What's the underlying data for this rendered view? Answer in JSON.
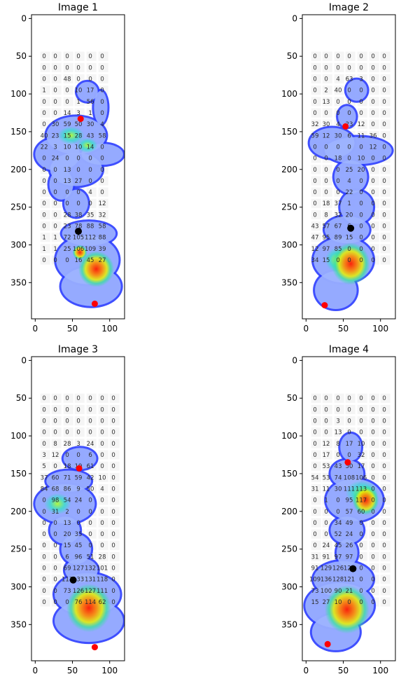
{
  "figure": {
    "grid": false,
    "x_ticks": [
      0,
      50,
      100
    ],
    "y_ticks": [
      0,
      50,
      100,
      150,
      200,
      250,
      300,
      350
    ],
    "xlim": [
      -5,
      120
    ],
    "ylim": [
      398,
      -5
    ],
    "colors": {
      "red_marker": "#ff0000",
      "black_marker": "#000000",
      "foot_outline": "#1a34ff"
    }
  },
  "chart_data": [
    {
      "type": "heatmap",
      "title": "Image 1",
      "x_ticks": [
        0,
        50,
        100
      ],
      "y_ticks": [
        0,
        50,
        100,
        150,
        200,
        250,
        300,
        350
      ],
      "xlim": [
        -5,
        120
      ],
      "ylim": [
        398,
        -5
      ],
      "grid_x": [
        12,
        27,
        43,
        58,
        74,
        90,
        105
      ],
      "grid_y": [
        50,
        65,
        80,
        95,
        110,
        125,
        140,
        155,
        170,
        185,
        200,
        215,
        230,
        245,
        260,
        275,
        290,
        305,
        320,
        335,
        350,
        365
      ],
      "cell_values": [
        [
          "0",
          "0",
          "0",
          "0",
          "0",
          "0"
        ],
        [
          "0",
          "0",
          "0",
          "0",
          "0",
          "0"
        ],
        [
          "0",
          "0",
          "48",
          "0",
          "0",
          "0"
        ],
        [
          "1",
          "0",
          "0",
          "10",
          "17",
          "0"
        ],
        [
          "0",
          "0",
          "0",
          "1",
          "56",
          "0"
        ],
        [
          "0",
          "0",
          "14",
          "3",
          "1",
          "0"
        ],
        [
          "0",
          "30",
          "59",
          "50",
          "30",
          "4"
        ],
        [
          "40",
          "23",
          "15",
          "28",
          "43",
          "58"
        ],
        [
          "22",
          "3",
          "10",
          "10",
          "14",
          "0"
        ],
        [
          "0",
          "24",
          "0",
          "0",
          "0",
          "0"
        ],
        [
          "0",
          "0",
          "13",
          "0",
          "0",
          "0"
        ],
        [
          "0",
          "0",
          "13",
          "27",
          "0",
          "0"
        ],
        [
          "0",
          "0",
          "0",
          "0",
          "4",
          "0"
        ],
        [
          "0",
          "0",
          "0",
          "0",
          "0",
          "12"
        ],
        [
          "0",
          "0",
          "28",
          "38",
          "35",
          "32"
        ],
        [
          "0",
          "0",
          "23",
          "78",
          "88",
          "58"
        ],
        [
          "1",
          "1",
          "72",
          "105",
          "112",
          "88"
        ],
        [
          "1",
          "1",
          "25",
          "106",
          "109",
          "39"
        ],
        [
          "0",
          "0",
          "0",
          "16",
          "45",
          "27"
        ]
      ],
      "red_points": [
        [
          61,
          133
        ],
        [
          80,
          378
        ]
      ],
      "black_points": [
        [
          58,
          282
        ]
      ]
    },
    {
      "type": "heatmap",
      "title": "Image 2",
      "x_ticks": [
        0,
        50,
        100
      ],
      "y_ticks": [
        0,
        50,
        100,
        150,
        200,
        250,
        300,
        350
      ],
      "xlim": [
        -5,
        120
      ],
      "ylim": [
        398,
        -5
      ],
      "grid_x": [
        12,
        27,
        43,
        58,
        74,
        90,
        105
      ],
      "grid_y": [
        50,
        65,
        80,
        95,
        110,
        125,
        140,
        155,
        170,
        185,
        200,
        215,
        230,
        245,
        260,
        275,
        290,
        305,
        320,
        335,
        350,
        365
      ],
      "cell_values": [
        [
          "0",
          "0",
          "0",
          "0",
          "0",
          "0",
          "0"
        ],
        [
          "0",
          "0",
          "0",
          "0",
          "0",
          "0",
          "0"
        ],
        [
          "0",
          "0",
          "4",
          "63",
          "3",
          "0",
          "0"
        ],
        [
          "0",
          "2",
          "40",
          "0",
          "0",
          "0",
          "0"
        ],
        [
          "0",
          "13",
          "0",
          "0",
          "0",
          "0",
          "0"
        ],
        [
          "0",
          "0",
          "0",
          "0",
          "0",
          "0",
          "0"
        ],
        [
          "32",
          "30",
          "4",
          "23",
          "12",
          "0",
          "0"
        ],
        [
          "59",
          "12",
          "30",
          "6",
          "11",
          "36",
          "0"
        ],
        [
          "0",
          "0",
          "0",
          "0",
          "0",
          "12",
          "0"
        ],
        [
          "0",
          "0",
          "18",
          "0",
          "10",
          "0",
          "0"
        ],
        [
          "0",
          "0",
          "0",
          "25",
          "20",
          "0",
          "0"
        ],
        [
          "0",
          "0",
          "0",
          "4",
          "0",
          "0",
          "0"
        ],
        [
          "0",
          "0",
          "0",
          "22",
          "0",
          "0",
          "0"
        ],
        [
          "0",
          "18",
          "37",
          "1",
          "0",
          "0",
          "0"
        ],
        [
          "0",
          "8",
          "32",
          "20",
          "0",
          "0",
          "0"
        ],
        [
          "43",
          "57",
          "67",
          "6",
          "0",
          "0",
          "0"
        ],
        [
          "47",
          "95",
          "89",
          "15",
          "0",
          "0",
          "0"
        ],
        [
          "12",
          "97",
          "85",
          "0",
          "0",
          "0",
          "0"
        ],
        [
          "34",
          "15",
          "0",
          "0",
          "0",
          "0",
          "0"
        ]
      ],
      "red_points": [
        [
          53,
          143
        ],
        [
          25,
          380
        ]
      ],
      "black_points": [
        [
          60,
          278
        ]
      ]
    },
    {
      "type": "heatmap",
      "title": "Image 3",
      "x_ticks": [
        0,
        50,
        100
      ],
      "y_ticks": [
        0,
        50,
        100,
        150,
        200,
        250,
        300,
        350
      ],
      "xlim": [
        -5,
        120
      ],
      "ylim": [
        398,
        -5
      ],
      "grid_x": [
        12,
        27,
        43,
        58,
        74,
        90,
        105
      ],
      "grid_y": [
        50,
        65,
        80,
        95,
        110,
        125,
        140,
        155,
        170,
        185,
        200,
        215,
        230,
        245,
        260,
        275,
        290,
        305,
        320,
        335,
        350,
        365
      ],
      "cell_values": [
        [
          "0",
          "0",
          "0",
          "0",
          "0",
          "0",
          "0"
        ],
        [
          "0",
          "0",
          "0",
          "0",
          "0",
          "0",
          "0"
        ],
        [
          "0",
          "0",
          "0",
          "0",
          "0",
          "0",
          "0"
        ],
        [
          "0",
          "0",
          "0",
          "0",
          "0",
          "0",
          "0"
        ],
        [
          "0",
          "8",
          "28",
          "3",
          "24",
          "0",
          "0"
        ],
        [
          "3",
          "12",
          "0",
          "0",
          "6",
          "0",
          "0"
        ],
        [
          "5",
          "0",
          "18",
          "19",
          "61",
          "0",
          "0"
        ],
        [
          "37",
          "60",
          "71",
          "59",
          "42",
          "10",
          "0"
        ],
        [
          "84",
          "68",
          "86",
          "9",
          "50",
          "4",
          "0"
        ],
        [
          "0",
          "98",
          "54",
          "24",
          "0",
          "0",
          "0"
        ],
        [
          "0",
          "31",
          "2",
          "0",
          "0",
          "0",
          "0"
        ],
        [
          "0",
          "0",
          "13",
          "0",
          "0",
          "0",
          "0"
        ],
        [
          "0",
          "0",
          "20",
          "35",
          "0",
          "0",
          "0"
        ],
        [
          "0",
          "0",
          "15",
          "45",
          "0",
          "0",
          "0"
        ],
        [
          "0",
          "0",
          "6",
          "96",
          "51",
          "28",
          "0"
        ],
        [
          "0",
          "0",
          "69",
          "127",
          "132",
          "101",
          "0"
        ],
        [
          "0",
          "0",
          "113",
          "133",
          "131",
          "118",
          "0"
        ],
        [
          "0",
          "0",
          "73",
          "126",
          "127",
          "111",
          "0"
        ],
        [
          "0",
          "0",
          "0",
          "76",
          "114",
          "62",
          "0"
        ]
      ],
      "red_points": [
        [
          59,
          143
        ],
        [
          80,
          380
        ]
      ],
      "black_points": [
        [
          51,
          291
        ]
      ]
    },
    {
      "type": "heatmap",
      "title": "Image 4",
      "x_ticks": [
        0,
        50,
        100
      ],
      "y_ticks": [
        0,
        50,
        100,
        150,
        200,
        250,
        300,
        350
      ],
      "xlim": [
        -5,
        120
      ],
      "ylim": [
        398,
        -5
      ],
      "grid_x": [
        12,
        27,
        43,
        58,
        74,
        90,
        105
      ],
      "grid_y": [
        50,
        65,
        80,
        95,
        110,
        125,
        140,
        155,
        170,
        185,
        200,
        215,
        230,
        245,
        260,
        275,
        290,
        305,
        320,
        335,
        350,
        365
      ],
      "cell_values": [
        [
          "0",
          "0",
          "0",
          "0",
          "0",
          "0",
          "0"
        ],
        [
          "0",
          "0",
          "0",
          "0",
          "0",
          "0",
          "0"
        ],
        [
          "0",
          "0",
          "3",
          "0",
          "0",
          "0",
          "0"
        ],
        [
          "0",
          "0",
          "13",
          "0",
          "0",
          "0",
          "0"
        ],
        [
          "0",
          "12",
          "8",
          "17",
          "10",
          "0",
          "0"
        ],
        [
          "0",
          "17",
          "0",
          "0",
          "32",
          "0",
          "0"
        ],
        [
          "0",
          "53",
          "43",
          "50",
          "17",
          "0",
          "0"
        ],
        [
          "54",
          "53",
          "74",
          "108",
          "106",
          "0",
          "0"
        ],
        [
          "31",
          "11",
          "30",
          "111",
          "113",
          "0",
          "0"
        ],
        [
          "0",
          "1",
          "0",
          "95",
          "117",
          "0",
          "0"
        ],
        [
          "0",
          "0",
          "0",
          "57",
          "60",
          "0",
          "0"
        ],
        [
          "0",
          "0",
          "34",
          "49",
          "0",
          "0",
          "0"
        ],
        [
          "0",
          "0",
          "52",
          "24",
          "0",
          "0",
          "0"
        ],
        [
          "0",
          "24",
          "45",
          "26",
          "0",
          "0",
          "0"
        ],
        [
          "31",
          "91",
          "97",
          "97",
          "0",
          "0",
          "0"
        ],
        [
          "91",
          "129",
          "126",
          "120",
          "0",
          "0",
          "0"
        ],
        [
          "109",
          "136",
          "128",
          "121",
          "0",
          "0",
          "0"
        ],
        [
          "73",
          "100",
          "90",
          "21",
          "0",
          "0",
          "0"
        ],
        [
          "15",
          "27",
          "10",
          "0",
          "0",
          "0",
          "0"
        ]
      ],
      "red_points": [
        [
          56,
          135
        ],
        [
          29,
          376
        ]
      ],
      "black_points": [
        [
          63,
          276
        ]
      ]
    }
  ]
}
